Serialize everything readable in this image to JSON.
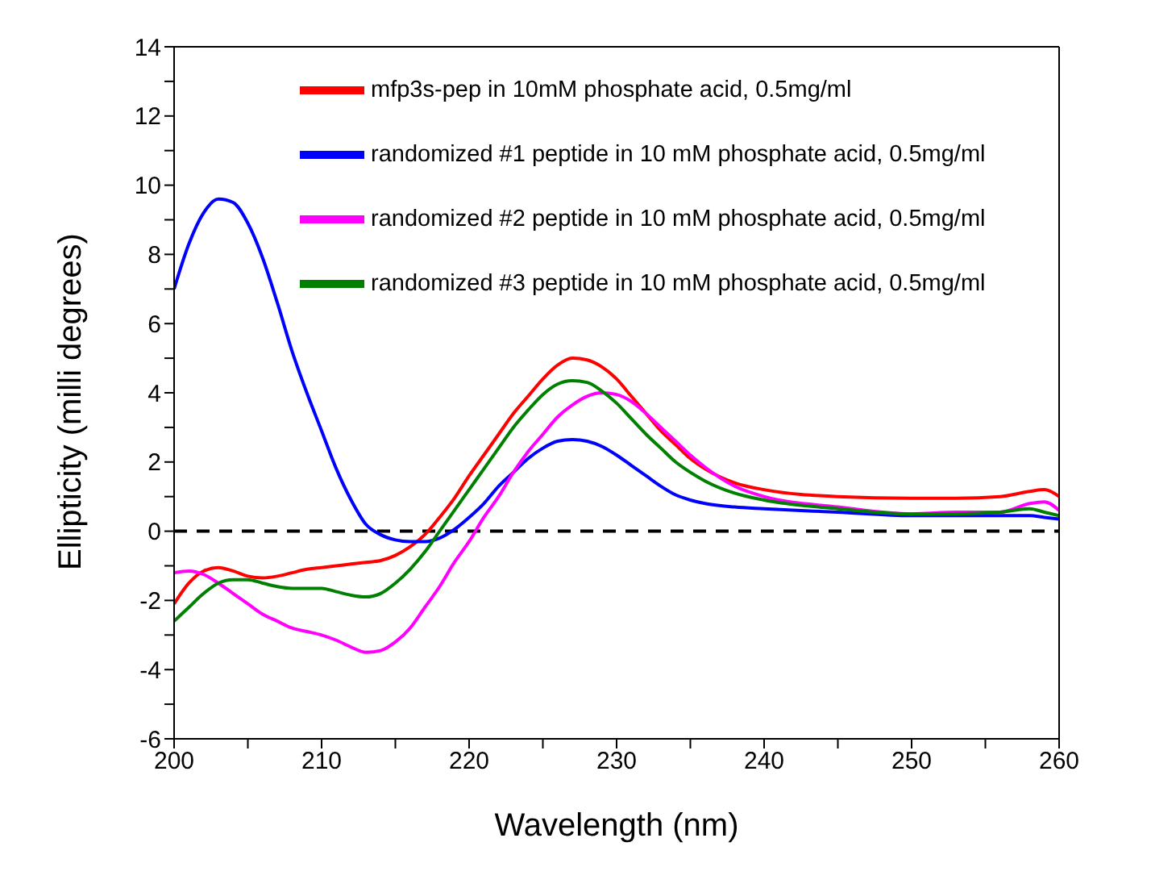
{
  "chart_data": {
    "type": "line",
    "xlabel": "Wavelength (nm)",
    "ylabel": "Ellipticity (milli degrees)",
    "x": [
      200,
      201,
      202,
      203,
      204,
      205,
      206,
      207,
      208,
      209,
      210,
      211,
      212,
      213,
      214,
      215,
      216,
      217,
      218,
      219,
      220,
      221,
      222,
      223,
      224,
      225,
      226,
      227,
      228,
      229,
      230,
      231,
      232,
      233,
      234,
      235,
      236,
      238,
      240,
      245,
      250,
      253,
      256,
      258,
      259,
      260
    ],
    "series": [
      {
        "name": "mfp3s-pep in 10mM phosphate acid, 0.5mg/ml",
        "color": "#ff0000",
        "values": [
          -2.1,
          -1.5,
          -1.15,
          -1.05,
          -1.15,
          -1.3,
          -1.35,
          -1.3,
          -1.2,
          -1.1,
          -1.05,
          -1.0,
          -0.95,
          -0.9,
          -0.85,
          -0.7,
          -0.45,
          -0.1,
          0.4,
          0.95,
          1.6,
          2.2,
          2.8,
          3.4,
          3.9,
          4.4,
          4.8,
          5.0,
          4.95,
          4.75,
          4.4,
          3.9,
          3.4,
          2.9,
          2.5,
          2.1,
          1.8,
          1.4,
          1.2,
          1.0,
          0.95,
          0.95,
          1.0,
          1.15,
          1.2,
          1.0
        ]
      },
      {
        "name": "randomized #1 peptide in 10 mM phosphate acid, 0.5mg/ml",
        "color": "#0000ff",
        "values": [
          7.0,
          8.3,
          9.2,
          9.6,
          9.5,
          8.9,
          7.9,
          6.6,
          5.2,
          4.0,
          2.9,
          1.8,
          0.9,
          0.2,
          -0.1,
          -0.25,
          -0.3,
          -0.3,
          -0.2,
          0.05,
          0.4,
          0.8,
          1.3,
          1.7,
          2.1,
          2.4,
          2.6,
          2.65,
          2.6,
          2.45,
          2.2,
          1.9,
          1.6,
          1.3,
          1.05,
          0.9,
          0.8,
          0.7,
          0.65,
          0.55,
          0.45,
          0.45,
          0.45,
          0.45,
          0.4,
          0.35
        ]
      },
      {
        "name": "randomized #2 peptide in 10 mM phosphate acid, 0.5mg/ml",
        "color": "#ff00ff",
        "values": [
          -1.2,
          -1.15,
          -1.25,
          -1.5,
          -1.8,
          -2.1,
          -2.4,
          -2.6,
          -2.8,
          -2.9,
          -3.0,
          -3.15,
          -3.35,
          -3.5,
          -3.45,
          -3.2,
          -2.8,
          -2.2,
          -1.6,
          -0.9,
          -0.3,
          0.4,
          1.0,
          1.7,
          2.3,
          2.8,
          3.3,
          3.65,
          3.9,
          4.0,
          3.95,
          3.75,
          3.4,
          3.0,
          2.6,
          2.2,
          1.85,
          1.3,
          1.0,
          0.7,
          0.5,
          0.55,
          0.55,
          0.8,
          0.85,
          0.6
        ]
      },
      {
        "name": "randomized #3 peptide in 10 mM phosphate acid, 0.5mg/ml",
        "color": "#008000",
        "values": [
          -2.6,
          -2.2,
          -1.8,
          -1.5,
          -1.4,
          -1.4,
          -1.5,
          -1.6,
          -1.65,
          -1.65,
          -1.65,
          -1.75,
          -1.85,
          -1.9,
          -1.8,
          -1.5,
          -1.1,
          -0.6,
          0.0,
          0.6,
          1.2,
          1.8,
          2.4,
          3.0,
          3.5,
          3.95,
          4.25,
          4.35,
          4.3,
          4.05,
          3.7,
          3.25,
          2.8,
          2.4,
          2.0,
          1.7,
          1.45,
          1.1,
          0.9,
          0.65,
          0.5,
          0.5,
          0.55,
          0.65,
          0.55,
          0.45
        ]
      }
    ],
    "xlim": [
      200,
      260
    ],
    "xticks": [
      200,
      {
        "value": 205,
        "label": null
      },
      210,
      {
        "value": 215,
        "label": null
      },
      220,
      {
        "value": 225,
        "label": null
      },
      230,
      {
        "value": 235,
        "label": null
      },
      240,
      {
        "value": 245,
        "label": null
      },
      250,
      {
        "value": 255,
        "label": null
      },
      260
    ],
    "ylim": [
      -6,
      14
    ],
    "yticks": [
      -6,
      {
        "value": -5,
        "label": null
      },
      -4,
      {
        "value": -3,
        "label": null
      },
      -2,
      {
        "value": -1,
        "label": null
      },
      0,
      {
        "value": 1,
        "label": null
      },
      2,
      {
        "value": 3,
        "label": null
      },
      4,
      {
        "value": 5,
        "label": null
      },
      6,
      {
        "value": 7,
        "label": null
      },
      8,
      {
        "value": 9,
        "label": null
      },
      10,
      {
        "value": 11,
        "label": null
      },
      12,
      {
        "value": 13,
        "label": null
      },
      14
    ],
    "ref_lines": [
      {
        "axis": "y",
        "value": 0,
        "color": "#000000",
        "line_style": "dashed"
      }
    ],
    "legend": "top",
    "grid": false,
    "marker": "none",
    "line_style": "solid"
  }
}
